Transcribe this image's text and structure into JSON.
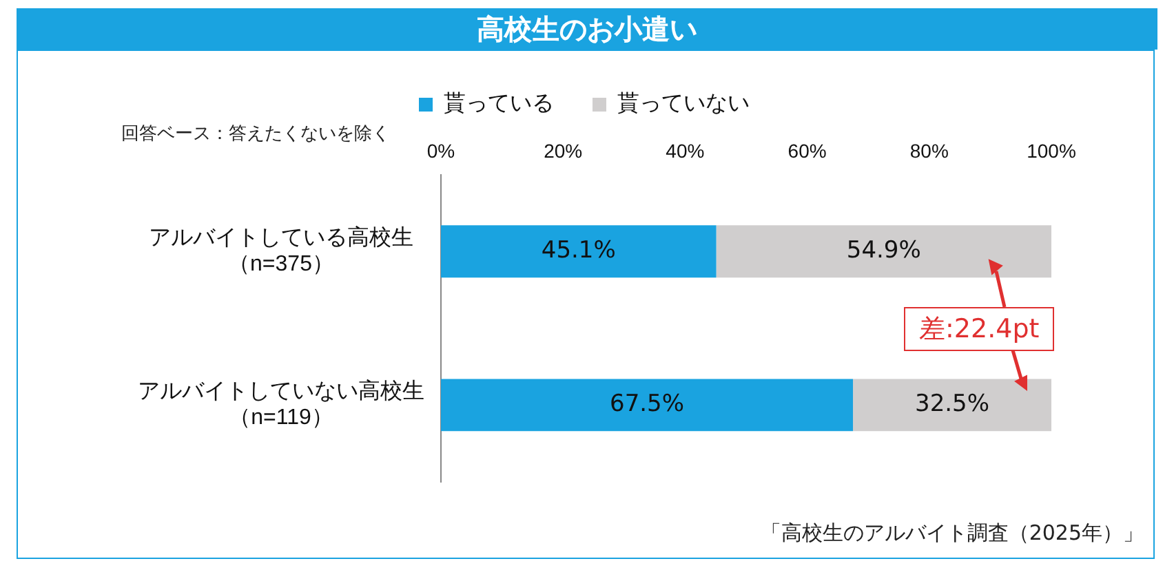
{
  "chart_data": {
    "type": "bar",
    "orientation": "horizontal",
    "stacked": true,
    "title": "高校生のお小遣い",
    "categories": [
      "アルバイトしている高校生（n=375）",
      "アルバイトしていない高校生（n=119）"
    ],
    "series": [
      {
        "name": "貰っている",
        "color": "#1aa3e0",
        "values": [
          45.1,
          67.5
        ],
        "value_labels": [
          "45.1%",
          "67.5%"
        ]
      },
      {
        "name": "貰っていない",
        "color": "#d0cece",
        "values": [
          54.9,
          32.5
        ],
        "value_labels": [
          "54.9%",
          "32.5%"
        ]
      }
    ],
    "xlim": [
      0,
      100
    ],
    "xticks": [
      {
        "value": 0,
        "label": "0%"
      },
      {
        "value": 20,
        "label": "20%"
      },
      {
        "value": 40,
        "label": "40%"
      },
      {
        "value": 60,
        "label": "60%"
      },
      {
        "value": 80,
        "label": "80%"
      },
      {
        "value": 100,
        "label": "100%"
      }
    ],
    "grid": false,
    "legend": "top",
    "annotations": [
      "回答ベース：答えたくないを除く",
      {
        "text": "差:22.4pt",
        "x": 100,
        "y": "アルバイトしている高校生（n=375）"
      },
      "「高校生のアルバイト調査（2025年）」"
    ]
  }
}
